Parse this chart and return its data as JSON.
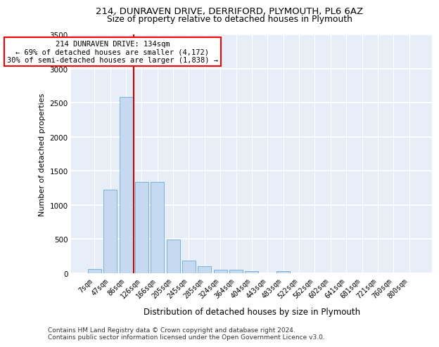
{
  "title1": "214, DUNRAVEN DRIVE, DERRIFORD, PLYMOUTH, PL6 6AZ",
  "title2": "Size of property relative to detached houses in Plymouth",
  "xlabel": "Distribution of detached houses by size in Plymouth",
  "ylabel": "Number of detached properties",
  "bar_categories": [
    "7sqm",
    "47sqm",
    "86sqm",
    "126sqm",
    "166sqm",
    "205sqm",
    "245sqm",
    "285sqm",
    "324sqm",
    "364sqm",
    "404sqm",
    "443sqm",
    "483sqm",
    "522sqm",
    "562sqm",
    "602sqm",
    "641sqm",
    "681sqm",
    "721sqm",
    "760sqm",
    "800sqm"
  ],
  "bar_values": [
    60,
    1220,
    2580,
    1340,
    1340,
    490,
    190,
    105,
    55,
    50,
    35,
    0,
    35,
    0,
    0,
    0,
    0,
    0,
    0,
    0,
    0
  ],
  "bar_color": "#c5d9f0",
  "bar_edge_color": "#6aaad4",
  "vline_x": 2.5,
  "vline_color": "#cc0000",
  "annotation_line1": "214 DUNRAVEN DRIVE: 134sqm",
  "annotation_line2": "← 69% of detached houses are smaller (4,172)",
  "annotation_line3": "30% of semi-detached houses are larger (1,838) →",
  "ylim_max": 3500,
  "yticks": [
    0,
    500,
    1000,
    1500,
    2000,
    2500,
    3000,
    3500
  ],
  "bg_color": "#e8eef8",
  "grid_color": "#ffffff",
  "footer": "Contains HM Land Registry data © Crown copyright and database right 2024.\nContains public sector information licensed under the Open Government Licence v3.0."
}
